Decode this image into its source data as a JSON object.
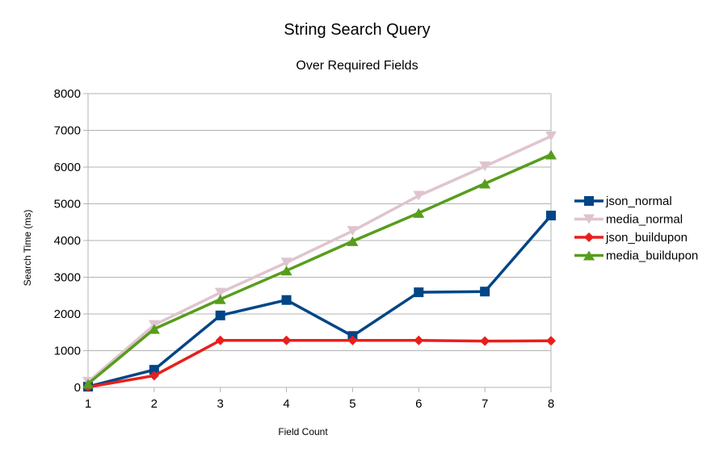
{
  "chart_data": {
    "type": "line",
    "title": "String Search Query",
    "subtitle": "Over Required Fields",
    "xlabel": "Field Count",
    "ylabel": "Search Time (ms)",
    "x": [
      1,
      2,
      3,
      4,
      5,
      6,
      7,
      8
    ],
    "x_tick_labels": [
      "1",
      "2",
      "3",
      "4",
      "5",
      "6",
      "7",
      "8"
    ],
    "ylim": [
      0,
      8000
    ],
    "y_ticks": [
      0,
      1000,
      2000,
      3000,
      4000,
      5000,
      6000,
      7000,
      8000
    ],
    "y_tick_labels": [
      "0",
      "1000",
      "2000",
      "3000",
      "4000",
      "5000",
      "6000",
      "7000",
      "8000"
    ],
    "grid": "horizontal",
    "legend_position": "right",
    "series": [
      {
        "name": "json_normal",
        "color": "#004586",
        "marker": "square",
        "values": [
          20,
          480,
          1960,
          2380,
          1400,
          2590,
          2610,
          4680
        ]
      },
      {
        "name": "media_normal",
        "color": "#dfc4d0",
        "marker": "triangle-down",
        "values": [
          150,
          1700,
          2580,
          3400,
          4260,
          5220,
          6020,
          6840
        ]
      },
      {
        "name": "json_buildupon",
        "color": "#e81f1c",
        "marker": "diamond",
        "values": [
          10,
          320,
          1280,
          1280,
          1280,
          1280,
          1260,
          1270
        ]
      },
      {
        "name": "media_buildupon",
        "color": "#579d1c",
        "marker": "triangle-up",
        "values": [
          100,
          1590,
          2400,
          3180,
          3980,
          4750,
          5550,
          6340
        ]
      }
    ]
  }
}
